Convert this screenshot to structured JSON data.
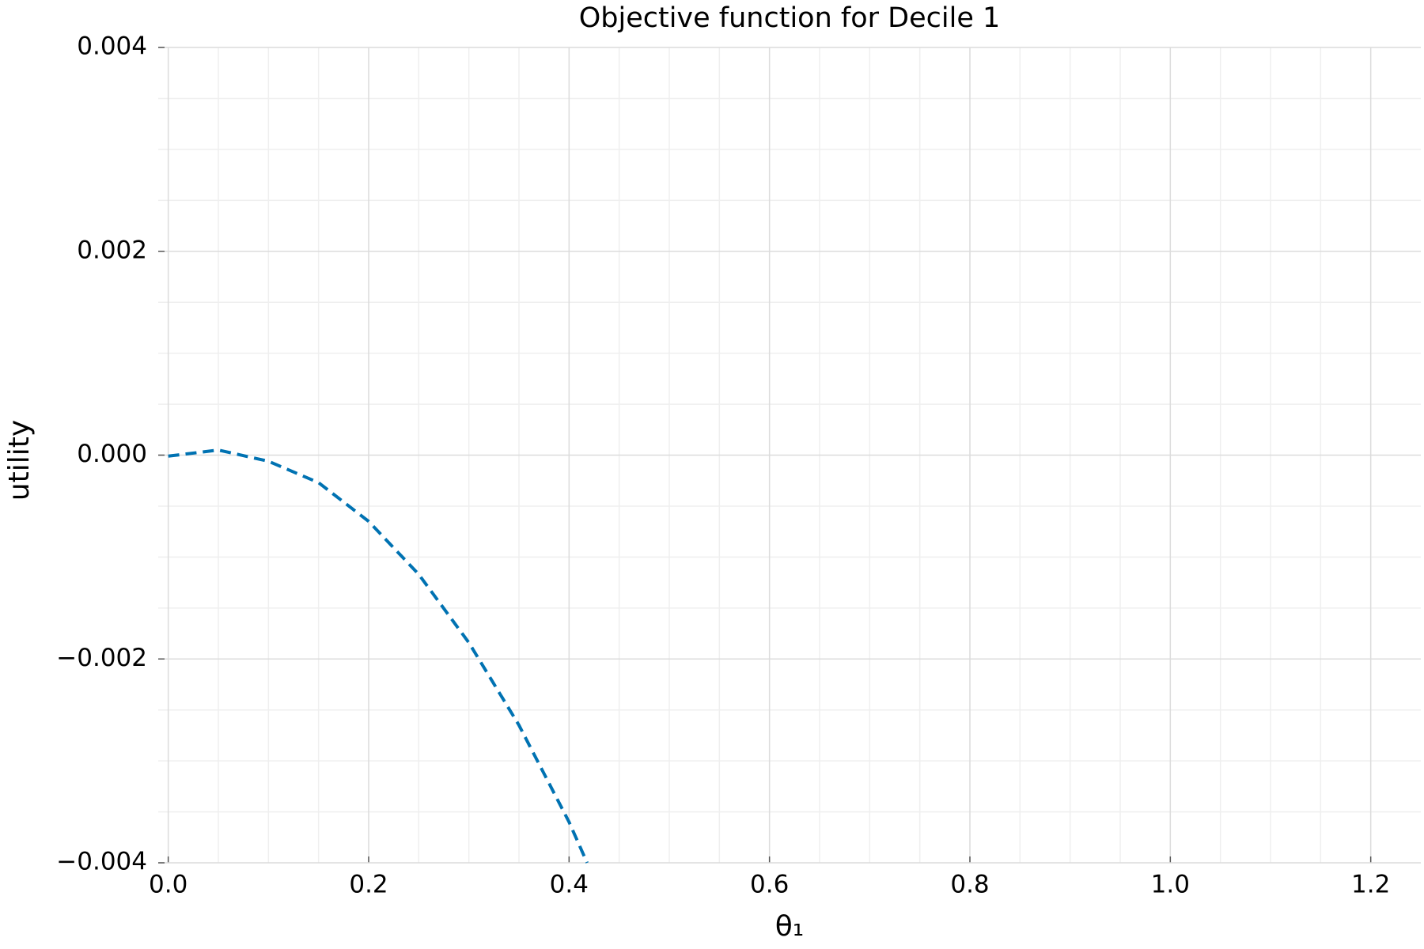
{
  "chart_data": {
    "type": "line",
    "title": "Objective function for Decile 1",
    "x_label": "θ₁",
    "y_label": "utility",
    "x": [
      0,
      0.05,
      0.1,
      0.15,
      0.2,
      0.25,
      0.3,
      0.35,
      0.4,
      0.418
    ],
    "values": [
      -1e-05,
      5e-05,
      -6e-05,
      -0.00027,
      -0.00065,
      -0.00117,
      -0.00184,
      -0.00265,
      -0.0036,
      -0.004
    ],
    "color": "#0072b2",
    "line_style": "dashed",
    "xlim": [
      -0.01,
      1.25
    ],
    "ylim": [
      -0.004,
      0.004
    ],
    "xticks": [
      {
        "value": 0,
        "label": "0.0"
      },
      0.2,
      0.4,
      0.6,
      0.8,
      {
        "value": 1,
        "label": "1.0"
      },
      1.2
    ],
    "yticks": [
      {
        "value": -0.004,
        "label": "−0.004"
      },
      {
        "value": -0.002,
        "label": "−0.002"
      },
      {
        "value": 0,
        "label": "0.000"
      },
      0.002,
      0.004
    ],
    "grid": true,
    "minor_grid": true
  }
}
